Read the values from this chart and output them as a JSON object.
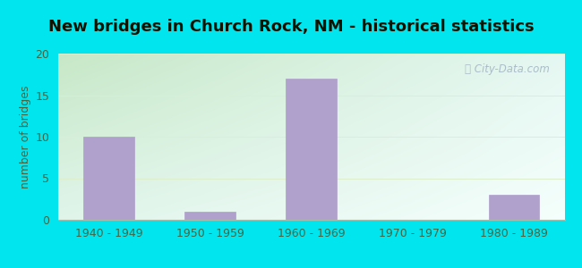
{
  "title": "New bridges in Church Rock, NM - historical statistics",
  "categories": [
    "1940 - 1949",
    "1950 - 1959",
    "1960 - 1969",
    "1970 - 1979",
    "1980 - 1989"
  ],
  "values": [
    10,
    1,
    17,
    0,
    3
  ],
  "bar_color": "#b0a0cc",
  "bar_edge_color": "#b0a0cc",
  "ylim": [
    0,
    20
  ],
  "yticks": [
    0,
    5,
    10,
    15,
    20
  ],
  "ylabel": "number of bridges",
  "ylabel_color": "#446644",
  "title_color": "#111100",
  "tick_color": "#446644",
  "background_outer": "#00e5ee",
  "background_top_left": "#c8e8c8",
  "background_bottom_right": "#f0faf8",
  "watermark": "City-Data.com",
  "grid_color": "#ddeecc",
  "title_fontsize": 13,
  "label_fontsize": 9,
  "ylabel_fontsize": 9
}
